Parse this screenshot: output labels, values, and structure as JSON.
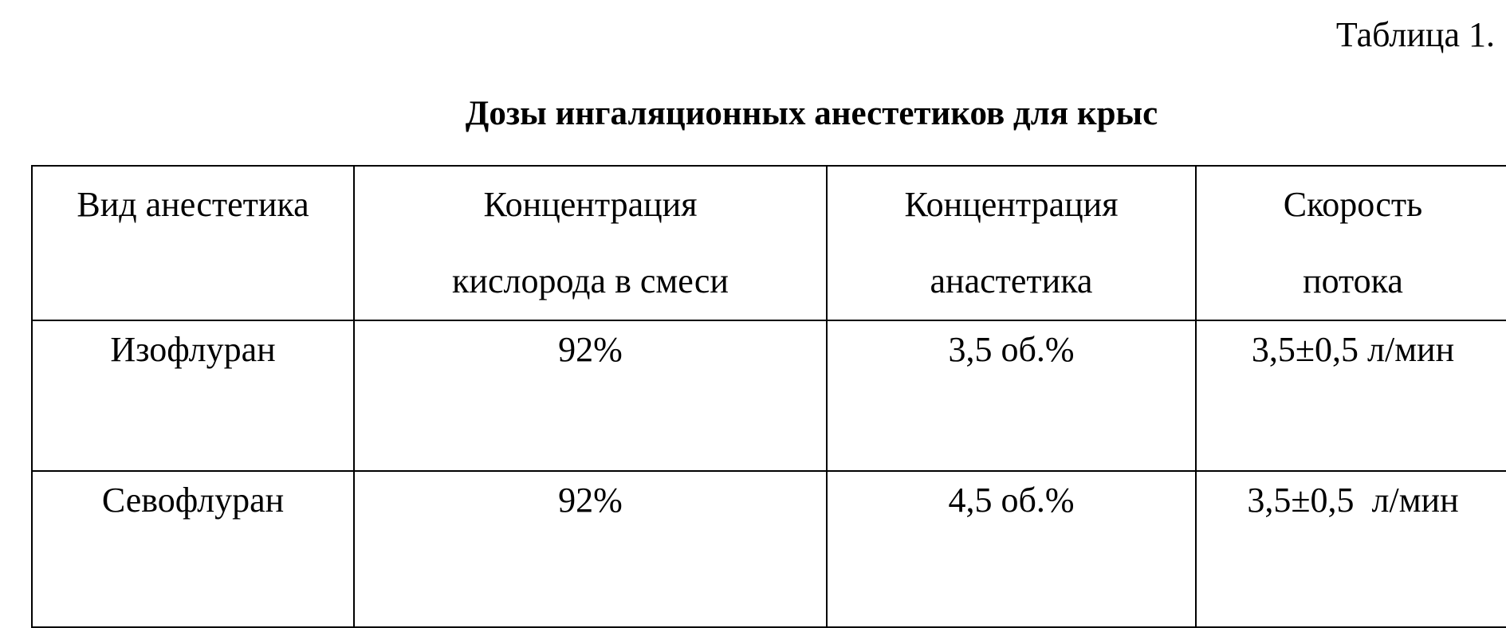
{
  "caption": "Таблица 1.",
  "heading": "Дозы  ингаляционных анестетиков для крыс",
  "table": {
    "headers": [
      [
        "Вид анестетика"
      ],
      [
        "Концентрация",
        "кислорода в смеси"
      ],
      [
        "Концентрация",
        "анастетика"
      ],
      [
        "Скорость",
        "потока"
      ]
    ],
    "rows": [
      [
        "Изофлуран",
        "92%",
        "3,5 об.%",
        "3,5±0,5 л/мин"
      ],
      [
        "Севофлуран",
        "92%",
        "4,5 об.%",
        "3,5±0,5  л/мин"
      ]
    ]
  }
}
